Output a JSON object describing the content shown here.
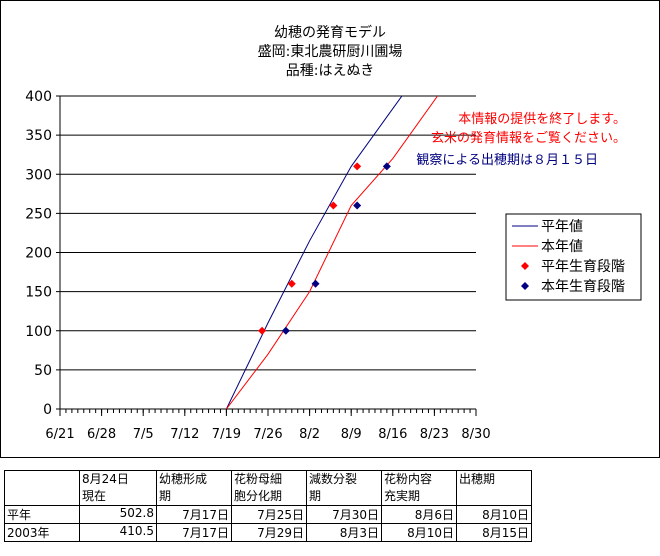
{
  "chart_data": {
    "type": "line",
    "title_lines": [
      "幼穂の発育モデル",
      "盛岡:東北農研厨川圃場",
      "品種:はえぬき"
    ],
    "x_ticks": [
      "6/21",
      "6/28",
      "7/5",
      "7/12",
      "7/19",
      "7/26",
      "8/2",
      "8/9",
      "8/16",
      "8/23",
      "8/30"
    ],
    "y_ticks": [
      "0",
      "50",
      "100",
      "150",
      "200",
      "250",
      "300",
      "350",
      "400"
    ],
    "ylim": [
      0,
      400
    ],
    "grid": "horizontal",
    "legend_position": "right",
    "notice_lines": [
      "本情報の提供を終了します。",
      "玄米の発育情報をご覧ください。"
    ],
    "heading_date_note": "観察による出穂期は８月１５日",
    "series": [
      {
        "name": "平年値",
        "kind": "line",
        "color": "#000080",
        "points": [
          [
            "7/19",
            0
          ],
          [
            "7/26",
            110
          ],
          [
            "8/2",
            215
          ],
          [
            "8/9",
            310
          ],
          [
            "8/18",
            405
          ]
        ]
      },
      {
        "name": "本年値",
        "kind": "line",
        "color": "#ff0000",
        "points": [
          [
            "7/19",
            0
          ],
          [
            "7/26",
            70
          ],
          [
            "8/2",
            150
          ],
          [
            "8/9",
            260
          ],
          [
            "8/16",
            320
          ],
          [
            "8/24",
            405
          ]
        ]
      },
      {
        "name": "平年生育段階",
        "kind": "marker",
        "color": "#ff0000",
        "points": [
          [
            "7/25",
            100
          ],
          [
            "7/30",
            160
          ],
          [
            "8/6",
            260
          ],
          [
            "8/10",
            310
          ]
        ]
      },
      {
        "name": "本年生育段階",
        "kind": "marker",
        "color": "#000080",
        "points": [
          [
            "7/29",
            100
          ],
          [
            "8/3",
            160
          ],
          [
            "8/10",
            260
          ],
          [
            "8/15",
            310
          ]
        ]
      }
    ]
  },
  "table": {
    "header": [
      "",
      "8月24日\n現在",
      "幼穂形成\n期",
      "花粉母細\n胞分化期",
      "減数分裂\n期",
      "花粉内容\n充実期",
      "出穂期"
    ],
    "rows": [
      [
        "平年",
        "502.8",
        "7月17日",
        "7月25日",
        "7月30日",
        "8月6日",
        "8月10日"
      ],
      [
        "2003年",
        "410.5",
        "7月17日",
        "7月29日",
        "8月3日",
        "8月10日",
        "8月15日"
      ]
    ]
  }
}
